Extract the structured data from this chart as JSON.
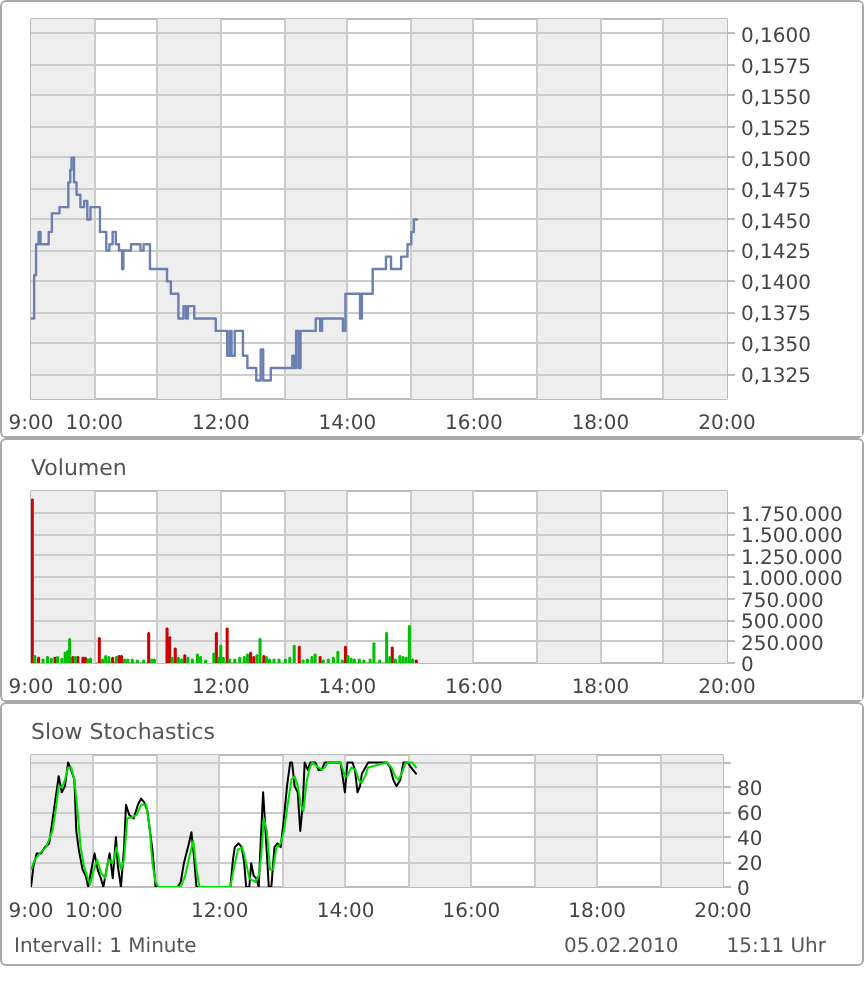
{
  "chart_data": [
    {
      "type": "step",
      "xlim": [
        9,
        20
      ],
      "ylim": [
        0.1305,
        0.1612
      ],
      "xticks": [
        {
          "value": 9,
          "label": "9:00"
        },
        {
          "value": 10,
          "label": "10:00"
        },
        {
          "value": 11,
          "label": null
        },
        {
          "value": 12,
          "label": "12:00"
        },
        {
          "value": 13,
          "label": null
        },
        {
          "value": 14,
          "label": "14:00"
        },
        {
          "value": 15,
          "label": null
        },
        {
          "value": 16,
          "label": "16:00"
        },
        {
          "value": 17,
          "label": null
        },
        {
          "value": 18,
          "label": "18:00"
        },
        {
          "value": 19,
          "label": null
        },
        {
          "value": 20,
          "label": "20:00"
        }
      ],
      "yticks": [
        {
          "value": 0.1325,
          "label": "0,1325"
        },
        {
          "value": 0.135,
          "label": "0,1350"
        },
        {
          "value": 0.1375,
          "label": "0,1375"
        },
        {
          "value": 0.14,
          "label": "0,1400"
        },
        {
          "value": 0.1425,
          "label": "0,1425"
        },
        {
          "value": 0.145,
          "label": "0,1450"
        },
        {
          "value": 0.1475,
          "label": "0,1475"
        },
        {
          "value": 0.15,
          "label": "0,1500"
        },
        {
          "value": 0.1525,
          "label": "0,1525"
        },
        {
          "value": 0.155,
          "label": "0,1550"
        },
        {
          "value": 0.1575,
          "label": "0,1575"
        },
        {
          "value": 0.16,
          "label": "0,1600"
        }
      ],
      "grid": true,
      "bands": [
        {
          "axis": "x",
          "from": 9,
          "to": 10,
          "color": "#eeeeee"
        },
        {
          "axis": "x",
          "from": 11,
          "to": 12,
          "color": "#eeeeee"
        },
        {
          "axis": "x",
          "from": 13,
          "to": 14,
          "color": "#eeeeee"
        },
        {
          "axis": "x",
          "from": 15,
          "to": 16,
          "color": "#eeeeee"
        },
        {
          "axis": "x",
          "from": 17,
          "to": 18,
          "color": "#eeeeee"
        },
        {
          "axis": "x",
          "from": 19,
          "to": 20,
          "color": "#eeeeee"
        }
      ],
      "series": [
        {
          "color": "#6b80b0",
          "x": [
            9.0,
            9.05,
            9.08,
            9.12,
            9.15,
            9.28,
            9.33,
            9.45,
            9.59,
            9.62,
            9.64,
            9.68,
            9.72,
            9.78,
            9.84,
            9.89,
            9.94,
            10.09,
            10.19,
            10.24,
            10.29,
            10.34,
            10.39,
            10.44,
            10.46,
            10.53,
            10.58,
            10.73,
            10.78,
            10.88,
            11.15,
            11.21,
            11.33,
            11.41,
            11.45,
            11.48,
            11.58,
            11.92,
            12.1,
            12.14,
            12.17,
            12.22,
            12.35,
            12.42,
            12.56,
            12.63,
            12.67,
            12.79,
            13.01,
            13.13,
            13.16,
            13.19,
            13.23,
            13.26,
            13.5,
            13.57,
            13.6,
            13.93,
            13.97,
            14.2,
            14.23,
            14.4,
            14.61,
            14.69,
            14.85,
            14.95,
            15.01,
            15.05,
            15.1
          ],
          "values": [
            0.137,
            0.1405,
            0.143,
            0.144,
            0.143,
            0.144,
            0.1455,
            0.146,
            0.148,
            0.149,
            0.15,
            0.148,
            0.147,
            0.146,
            0.1465,
            0.145,
            0.146,
            0.144,
            0.1425,
            0.143,
            0.144,
            0.143,
            0.1425,
            0.141,
            0.1425,
            0.1425,
            0.143,
            0.1425,
            0.143,
            0.141,
            0.14,
            0.139,
            0.137,
            0.138,
            0.137,
            0.138,
            0.137,
            0.136,
            0.134,
            0.136,
            0.134,
            0.136,
            0.134,
            0.133,
            0.132,
            0.1345,
            0.132,
            0.133,
            0.133,
            0.134,
            0.133,
            0.136,
            0.133,
            0.136,
            0.137,
            0.136,
            0.137,
            0.136,
            0.139,
            0.137,
            0.139,
            0.141,
            0.142,
            0.141,
            0.142,
            0.143,
            0.144,
            0.145,
            0.145
          ]
        }
      ]
    },
    {
      "type": "bar",
      "title": "Volumen",
      "xlim": [
        9,
        20
      ],
      "ylim": [
        0,
        2000000
      ],
      "xticks": [
        {
          "value": 9,
          "label": "9:00"
        },
        {
          "value": 10,
          "label": "10:00"
        },
        {
          "value": 11,
          "label": null
        },
        {
          "value": 12,
          "label": "12:00"
        },
        {
          "value": 13,
          "label": null
        },
        {
          "value": 14,
          "label": "14:00"
        },
        {
          "value": 15,
          "label": null
        },
        {
          "value": 16,
          "label": "16:00"
        },
        {
          "value": 17,
          "label": null
        },
        {
          "value": 18,
          "label": "18:00"
        },
        {
          "value": 19,
          "label": null
        },
        {
          "value": 20,
          "label": "20:00"
        }
      ],
      "yticks": [
        0,
        {
          "value": 250000,
          "label": "250.000"
        },
        {
          "value": 500000,
          "label": "500.000"
        },
        {
          "value": 750000,
          "label": "750.000"
        },
        {
          "value": 1000000,
          "label": "1.000.000"
        },
        {
          "value": 1250000,
          "label": "1.250.000"
        },
        {
          "value": 1500000,
          "label": "1.500.000"
        },
        {
          "value": 1750000,
          "label": "1.750.000"
        }
      ],
      "grid": true,
      "bands": [
        {
          "axis": "x",
          "from": 9,
          "to": 10,
          "color": "#eeeeee"
        },
        {
          "axis": "x",
          "from": 11,
          "to": 12,
          "color": "#eeeeee"
        },
        {
          "axis": "x",
          "from": 13,
          "to": 14,
          "color": "#eeeeee"
        },
        {
          "axis": "x",
          "from": 15,
          "to": 16,
          "color": "#eeeeee"
        },
        {
          "axis": "x",
          "from": 17,
          "to": 18,
          "color": "#eeeeee"
        },
        {
          "axis": "x",
          "from": 19,
          "to": 20,
          "color": "#eeeeee"
        }
      ],
      "series": [
        {
          "color": "#cc0000",
          "x": [
            9.02,
            9.12,
            9.38,
            9.66,
            9.74,
            9.82,
            9.86,
            10.08,
            10.29,
            10.39,
            10.43,
            10.86,
            11.15,
            11.19,
            11.28,
            11.43,
            11.93,
            12.1,
            12.47,
            12.52,
            12.68,
            13.24,
            13.57,
            13.97,
            14.71,
            15.09
          ],
          "values": [
            1900000,
            60000,
            60000,
            70000,
            70000,
            60000,
            60000,
            290000,
            60000,
            80000,
            80000,
            350000,
            400000,
            300000,
            170000,
            90000,
            350000,
            400000,
            120000,
            70000,
            80000,
            190000,
            70000,
            190000,
            180000,
            30000
          ]
        },
        {
          "color": "#00c000",
          "x": [
            9.06,
            9.19,
            9.26,
            9.32,
            9.42,
            9.49,
            9.54,
            9.58,
            9.61,
            9.7,
            9.9,
            9.94,
            10.13,
            10.18,
            10.23,
            10.35,
            10.48,
            10.53,
            10.6,
            10.68,
            10.78,
            10.91,
            10.95,
            11.23,
            11.33,
            11.38,
            11.48,
            11.55,
            11.63,
            11.68,
            11.76,
            11.89,
            11.97,
            12.0,
            12.04,
            12.14,
            12.22,
            12.3,
            12.37,
            12.42,
            12.57,
            12.62,
            12.72,
            12.77,
            12.84,
            12.92,
            13.02,
            13.09,
            13.16,
            13.3,
            13.37,
            13.44,
            13.49,
            13.62,
            13.7,
            13.78,
            13.85,
            13.92,
            14.01,
            14.06,
            14.11,
            14.19,
            14.26,
            14.36,
            14.42,
            14.51,
            14.62,
            14.67,
            14.76,
            14.83,
            14.88,
            14.93,
            14.98,
            15.03
          ],
          "values": [
            80000,
            40000,
            70000,
            50000,
            70000,
            50000,
            120000,
            140000,
            280000,
            70000,
            40000,
            50000,
            40000,
            80000,
            70000,
            70000,
            40000,
            40000,
            40000,
            30000,
            30000,
            40000,
            40000,
            60000,
            60000,
            40000,
            60000,
            40000,
            100000,
            70000,
            30000,
            110000,
            60000,
            200000,
            60000,
            40000,
            40000,
            60000,
            70000,
            100000,
            90000,
            280000,
            70000,
            40000,
            40000,
            40000,
            40000,
            60000,
            200000,
            30000,
            40000,
            70000,
            100000,
            30000,
            40000,
            60000,
            130000,
            30000,
            80000,
            50000,
            40000,
            40000,
            30000,
            40000,
            230000,
            30000,
            350000,
            70000,
            40000,
            80000,
            70000,
            60000,
            430000,
            40000
          ]
        }
      ]
    },
    {
      "type": "line",
      "title": "Slow Stochastics",
      "xlim": [
        9,
        20
      ],
      "ylim": [
        0,
        106
      ],
      "xticks": [
        {
          "value": 9,
          "label": "9:00"
        },
        {
          "value": 10,
          "label": "10:00"
        },
        {
          "value": 11,
          "label": null
        },
        {
          "value": 12,
          "label": "12:00"
        },
        {
          "value": 13,
          "label": null
        },
        {
          "value": 14,
          "label": "14:00"
        },
        {
          "value": 15,
          "label": null
        },
        {
          "value": 16,
          "label": "16:00"
        },
        {
          "value": 17,
          "label": null
        },
        {
          "value": 18,
          "label": "18:00"
        },
        {
          "value": 19,
          "label": null
        },
        {
          "value": 20,
          "label": "20:00"
        }
      ],
      "yticks": [
        0,
        20,
        40,
        60,
        80,
        {
          "value": 100,
          "label": null
        }
      ],
      "grid": true,
      "bands": [
        {
          "axis": "x",
          "from": 9,
          "to": 10,
          "color": "#eeeeee"
        },
        {
          "axis": "x",
          "from": 11,
          "to": 12,
          "color": "#eeeeee"
        },
        {
          "axis": "x",
          "from": 13,
          "to": 14,
          "color": "#eeeeee"
        },
        {
          "axis": "x",
          "from": 15,
          "to": 16,
          "color": "#eeeeee"
        },
        {
          "axis": "x",
          "from": 17,
          "to": 18,
          "color": "#eeeeee"
        },
        {
          "axis": "x",
          "from": 19,
          "to": 20,
          "color": "#eeeeee"
        }
      ],
      "annotations": [
        "Intervall: 1 Minute",
        "05.02.2010",
        "15:11 Uhr"
      ],
      "series": [
        {
          "color": "#000000",
          "x": [
            9.0,
            9.04,
            9.09,
            9.16,
            9.22,
            9.29,
            9.34,
            9.39,
            9.44,
            9.49,
            9.54,
            9.59,
            9.64,
            9.69,
            9.72,
            9.76,
            9.82,
            9.87,
            9.91,
            9.96,
            10.01,
            10.06,
            10.11,
            10.15,
            10.2,
            10.25,
            10.3,
            10.35,
            10.38,
            10.43,
            10.48,
            10.51,
            10.56,
            10.63,
            10.7,
            10.75,
            10.8,
            10.85,
            10.93,
            10.98,
            11.33,
            11.38,
            11.43,
            11.51,
            11.55,
            11.59,
            11.63,
            12.17,
            12.21,
            12.24,
            12.3,
            12.35,
            12.39,
            12.42,
            12.47,
            12.5,
            12.54,
            12.58,
            12.62,
            12.65,
            12.69,
            12.74,
            12.78,
            12.82,
            12.87,
            12.92,
            12.97,
            13.02,
            13.07,
            13.12,
            13.15,
            13.19,
            13.24,
            13.28,
            13.32,
            13.35,
            13.4,
            13.44,
            13.52,
            13.57,
            13.62,
            13.67,
            13.92,
            13.99,
            14.03,
            14.11,
            14.15,
            14.19,
            14.23,
            14.26,
            14.36,
            14.66,
            14.71,
            14.76,
            14.81,
            14.87,
            14.92,
            14.99,
            15.04,
            15.12
          ],
          "values": [
            0,
            17,
            27,
            27,
            32,
            35,
            53,
            71,
            89,
            76,
            81,
            100,
            94,
            86,
            45,
            30,
            14,
            9,
            0,
            14,
            27,
            14,
            7,
            0,
            14,
            27,
            7,
            40,
            17,
            0,
            32,
            66,
            58,
            55,
            66,
            71,
            68,
            61,
            30,
            0,
            0,
            4,
            19,
            35,
            44,
            25,
            0,
            0,
            22,
            32,
            35,
            32,
            19,
            0,
            0,
            19,
            9,
            7,
            0,
            35,
            76,
            35,
            0,
            0,
            32,
            35,
            32,
            55,
            81,
            100,
            100,
            81,
            76,
            45,
            66,
            100,
            94,
            100,
            100,
            94,
            94,
            100,
            100,
            76,
            100,
            100,
            94,
            76,
            81,
            91,
            100,
            100,
            96,
            86,
            81,
            86,
            100,
            100,
            96,
            91
          ]
        },
        {
          "color": "#00e000",
          "x": [
            9.0,
            9.06,
            9.14,
            9.24,
            9.34,
            9.39,
            9.44,
            9.49,
            9.54,
            9.59,
            9.64,
            9.69,
            9.74,
            9.79,
            9.84,
            9.89,
            9.94,
            9.99,
            10.05,
            10.11,
            10.18,
            10.23,
            10.3,
            10.36,
            10.43,
            10.48,
            10.53,
            10.6,
            10.68,
            10.75,
            10.83,
            10.88,
            10.93,
            10.98,
            11.03,
            11.38,
            11.45,
            11.53,
            11.58,
            11.63,
            11.68,
            12.17,
            12.22,
            12.29,
            12.36,
            12.42,
            12.47,
            12.57,
            12.62,
            12.66,
            12.7,
            12.75,
            12.8,
            12.85,
            12.9,
            12.97,
            13.02,
            13.08,
            13.14,
            13.19,
            13.24,
            13.29,
            13.33,
            13.38,
            13.42,
            13.47,
            13.57,
            13.62,
            13.67,
            13.72,
            13.92,
            13.99,
            14.03,
            14.09,
            14.16,
            14.21,
            14.26,
            14.31,
            14.36,
            14.66,
            14.73,
            14.79,
            14.84,
            14.89,
            14.96,
            15.06,
            15.12
          ],
          "values": [
            14,
            22,
            27,
            32,
            45,
            61,
            81,
            80,
            86,
            96,
            96,
            86,
            61,
            32,
            17,
            9,
            2,
            12,
            22,
            12,
            7,
            22,
            19,
            32,
            14,
            22,
            55,
            56,
            58,
            66,
            66,
            50,
            19,
            4,
            0,
            0,
            9,
            27,
            37,
            14,
            0,
            0,
            14,
            30,
            32,
            19,
            7,
            4,
            9,
            25,
            55,
            45,
            14,
            14,
            32,
            35,
            45,
            66,
            86,
            89,
            81,
            66,
            61,
            84,
            94,
            100,
            96,
            94,
            96,
            100,
            100,
            89,
            89,
            96,
            94,
            86,
            84,
            89,
            96,
            100,
            96,
            89,
            86,
            91,
            100,
            100,
            96
          ]
        }
      ]
    }
  ]
}
